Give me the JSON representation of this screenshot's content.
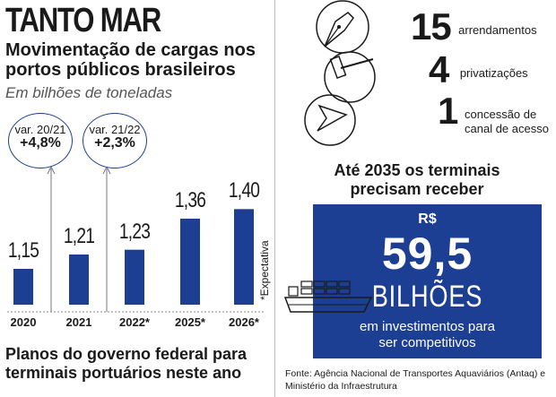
{
  "header": {
    "title": "TANTO MAR",
    "subtitle": "Movimentação de cargas nos portos públicos brasileiros",
    "units": "Em bilhões de toneladas"
  },
  "chart_data": {
    "type": "bar",
    "title": "Movimentação de cargas nos portos públicos brasileiros",
    "ylabel": "Em bilhões de toneladas",
    "categories": [
      "2020",
      "2021",
      "2022*",
      "2025*",
      "2026*"
    ],
    "values": [
      1.15,
      1.21,
      1.23,
      1.36,
      1.4
    ],
    "value_labels": [
      "1,15",
      "1,21",
      "1,23",
      "1,36",
      "1,40"
    ],
    "ylim": [
      1.0,
      1.45
    ],
    "bar_color": "#1c3f94",
    "annotations": [
      {
        "label": "var. 20/21",
        "value": "+4,8%"
      },
      {
        "label": "var. 21/22",
        "value": "+2,3%"
      }
    ],
    "note": "*Expectativa"
  },
  "plans": {
    "heading": "Planos do governo federal para terminais portuários neste ano",
    "items": [
      {
        "number": "15",
        "label": "arrendamentos",
        "icon": "pen-nib-icon"
      },
      {
        "number": "4",
        "label": "privatizações",
        "icon": "gavel-icon"
      },
      {
        "number": "1",
        "label": "concessão de canal de acesso",
        "label_lines": [
          "concessão de",
          "canal de acesso"
        ],
        "icon": "navigation-arrow-icon"
      }
    ]
  },
  "investment": {
    "heading": "Até 2035 os terminais precisam receber",
    "heading_lines": [
      "Até 2035 os terminais",
      "precisam receber"
    ],
    "currency": "R$",
    "amount": "59,5",
    "unit": "BILHÕES",
    "description_lines": [
      "em investimentos para",
      "ser competitivos"
    ],
    "box_color": "#1c3f94"
  },
  "source": {
    "lines": [
      "Fonte: Agência Nacional de Transportes Aquaviários (Antaq) e",
      "Ministério da Infraestrutura"
    ]
  }
}
